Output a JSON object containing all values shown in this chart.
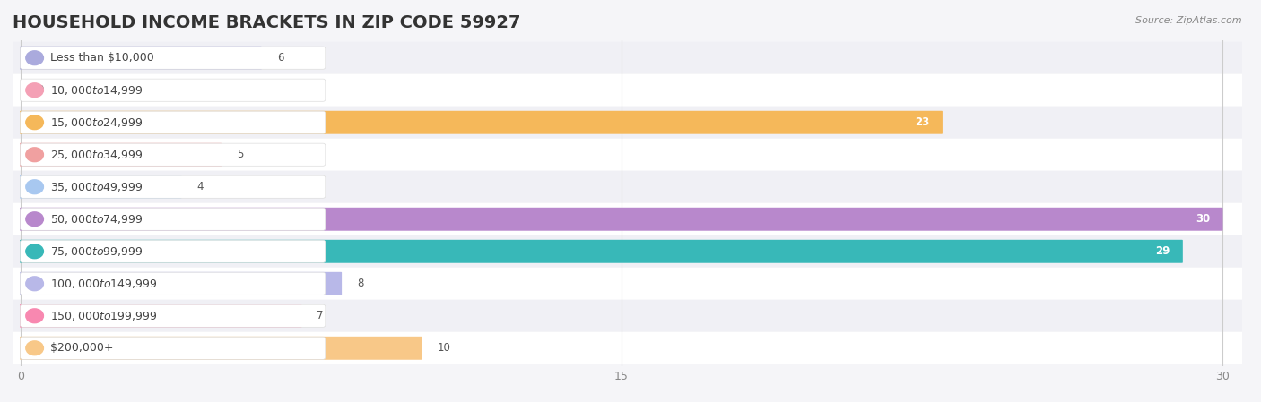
{
  "title": "HOUSEHOLD INCOME BRACKETS IN ZIP CODE 59927",
  "source": "Source: ZipAtlas.com",
  "categories": [
    "Less than $10,000",
    "$10,000 to $14,999",
    "$15,000 to $24,999",
    "$25,000 to $34,999",
    "$35,000 to $49,999",
    "$50,000 to $74,999",
    "$75,000 to $99,999",
    "$100,000 to $149,999",
    "$150,000 to $199,999",
    "$200,000+"
  ],
  "values": [
    6,
    0,
    23,
    5,
    4,
    30,
    29,
    8,
    7,
    10
  ],
  "bar_colors": [
    "#aaaadd",
    "#f4a0b5",
    "#f5b85a",
    "#f0a0a0",
    "#a8c8f0",
    "#b888cc",
    "#38b8b8",
    "#b8b8e8",
    "#f888b0",
    "#f8c888"
  ],
  "row_bg_colors": [
    "#f0f0f5",
    "#ffffff"
  ],
  "xlim": [
    0,
    30
  ],
  "xticks": [
    0,
    15,
    30
  ],
  "background_color": "#f5f5f8",
  "title_fontsize": 14,
  "label_fontsize": 9,
  "value_fontsize": 8.5,
  "figsize": [
    14.06,
    4.49
  ],
  "dpi": 100
}
